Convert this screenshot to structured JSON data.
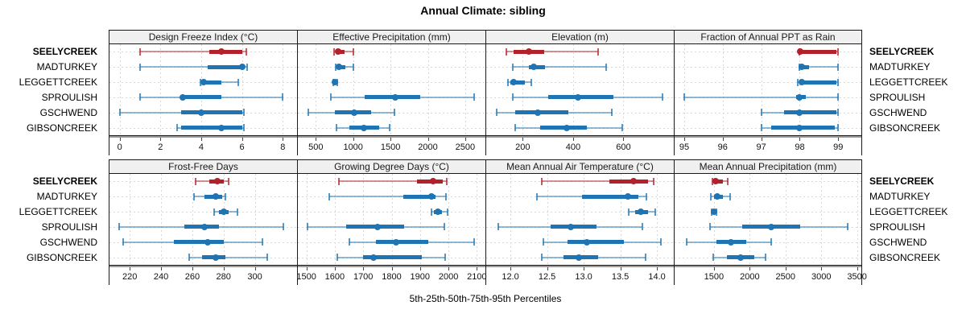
{
  "title": "Annual Climate: sibling",
  "footer_label": "5th-25th-50th-75th-95th Percentiles",
  "sites": [
    "SEELYCREEK",
    "MADTURKEY",
    "LEGGETTCREEK",
    "SPROULISH",
    "GSCHWEND",
    "GIBSONCREEK"
  ],
  "highlight_site": "SEELYCREEK",
  "colors": {
    "highlight": "#b3212a",
    "normal": "#1f74b3",
    "panel_header_bg": "#f0f0f0",
    "panel_border": "#1a1a1a",
    "gridline": "#d8d8d8",
    "axis_shadow": "#9a9a9a"
  },
  "chart_data": {
    "type": "dot-whisker-percentile-trellis",
    "percentiles": [
      "5th",
      "25th",
      "50th",
      "75th",
      "95th"
    ],
    "legend_note": "dot = 50th percentile, thick bar = 25th-75th, whisker with end caps = 5th-95th",
    "panels": [
      {
        "title": "Design Freeze Index (°C)",
        "row": 0,
        "domain": [
          -0.5,
          8.7
        ],
        "ticks": [
          0,
          2,
          4,
          6,
          8
        ],
        "tick_labels": [
          "0",
          "2",
          "4",
          "6",
          "8"
        ],
        "values": {
          "SEELYCREEK": [
            1.0,
            4.4,
            5.0,
            6.0,
            6.2
          ],
          "MADTURKEY": [
            1.0,
            4.3,
            6.0,
            6.1,
            6.25
          ],
          "LEGGETTCREEK": [
            3.95,
            4.0,
            4.1,
            5.0,
            5.8
          ],
          "SPROULISH": [
            1.0,
            3.0,
            3.1,
            5.0,
            8.0
          ],
          "GSCHWEND": [
            0.0,
            3.0,
            4.0,
            6.0,
            6.1
          ],
          "GIBSONCREEK": [
            2.8,
            3.0,
            5.0,
            6.0,
            6.1
          ]
        }
      },
      {
        "title": "Effective Precipitation (mm)",
        "row": 0,
        "domain": [
          260,
          2770
        ],
        "ticks": [
          500,
          1000,
          1500,
          2000,
          2500
        ],
        "tick_labels": [
          "500",
          "1000",
          "1500",
          "2000",
          "2500"
        ],
        "values": {
          "SEELYCREEK": [
            740,
            765,
            795,
            880,
            1005
          ],
          "MADTURKEY": [
            765,
            790,
            810,
            900,
            1005
          ],
          "LEGGETTCREEK": [
            730,
            745,
            757,
            775,
            790
          ],
          "SPROULISH": [
            700,
            1150,
            1560,
            1900,
            2615
          ],
          "GSCHWEND": [
            400,
            760,
            1010,
            1245,
            1550
          ],
          "GIBSONCREEK": [
            775,
            950,
            1140,
            1350,
            1490
          ]
        }
      },
      {
        "title": "Elevation (m)",
        "row": 0,
        "domain": [
          55,
          800
        ],
        "ticks": [
          200,
          400,
          600
        ],
        "tick_labels": [
          "200",
          "400",
          "600"
        ],
        "values": {
          "SEELYCREEK": [
            135,
            165,
            225,
            285,
            500
          ],
          "MADTURKEY": [
            160,
            225,
            245,
            290,
            530
          ],
          "LEGGETTCREEK": [
            140,
            150,
            165,
            210,
            235
          ],
          "SPROULISH": [
            160,
            300,
            420,
            560,
            755
          ],
          "GSCHWEND": [
            95,
            170,
            260,
            380,
            555
          ],
          "GIBSONCREEK": [
            170,
            270,
            375,
            455,
            595
          ]
        }
      },
      {
        "title": "Fraction of Annual PPT as Rain",
        "row": 0,
        "domain": [
          94.75,
          99.6
        ],
        "ticks": [
          95,
          96,
          97,
          98,
          99
        ],
        "tick_labels": [
          "95",
          "96",
          "97",
          "98",
          "99"
        ],
        "values": {
          "SEELYCREEK": [
            97.98,
            98.0,
            98.02,
            98.95,
            99.0
          ],
          "MADTURKEY": [
            97.98,
            98.0,
            98.05,
            98.25,
            99.0
          ],
          "LEGGETTCREEK": [
            97.95,
            98.0,
            98.05,
            98.95,
            99.0
          ],
          "SPROULISH": [
            95.0,
            97.9,
            98.0,
            98.15,
            99.0
          ],
          "GSCHWEND": [
            97.0,
            97.6,
            98.0,
            98.95,
            99.0
          ],
          "GIBSONCREEK": [
            97.0,
            97.25,
            98.0,
            98.9,
            99.0
          ]
        }
      },
      {
        "title": "Frost-Free Days",
        "row": 1,
        "domain": [
          207,
          327
        ],
        "ticks": [
          220,
          240,
          260,
          280,
          300
        ],
        "tick_labels": [
          "220",
          "240",
          "260",
          "280",
          "300"
        ],
        "values": {
          "SEELYCREEK": [
            262,
            271,
            276,
            280,
            283
          ],
          "MADTURKEY": [
            261,
            268,
            275,
            279,
            281
          ],
          "LEGGETTCREEK": [
            274,
            277,
            280,
            283,
            289
          ],
          "SPROULISH": [
            213,
            255,
            268,
            277,
            318
          ],
          "GSCHWEND": [
            216,
            248,
            270,
            280,
            305
          ],
          "GIBSONCREEK": [
            258,
            266,
            275,
            281,
            308
          ]
        }
      },
      {
        "title": "Growing Degree Days (°C)",
        "row": 1,
        "domain": [
          1470,
          2130
        ],
        "ticks": [
          1500,
          1600,
          1700,
          1800,
          1900,
          2000,
          2100
        ],
        "tick_labels": [
          "1500",
          "1600",
          "1700",
          "1800",
          "1900",
          "2000",
          "2100"
        ],
        "values": {
          "SEELYCREEK": [
            1615,
            1890,
            1945,
            1980,
            1995
          ],
          "MADTURKEY": [
            1580,
            1840,
            1940,
            1955,
            1990
          ],
          "LEGGETTCREEK": [
            1940,
            1950,
            1962,
            1978,
            1998
          ],
          "SPROULISH": [
            1505,
            1640,
            1750,
            1845,
            1985
          ],
          "GSCHWEND": [
            1650,
            1745,
            1815,
            1930,
            2090
          ],
          "GIBSONCREEK": [
            1608,
            1700,
            1735,
            1905,
            1988
          ]
        }
      },
      {
        "title": "Mean Annual Air Temperature (°C)",
        "row": 1,
        "domain": [
          11.67,
          14.23
        ],
        "ticks": [
          12.0,
          12.5,
          13.0,
          13.5,
          14.0
        ],
        "tick_labels": [
          "12.0",
          "12.5",
          "13.0",
          "13.5",
          "14.0"
        ],
        "values": {
          "SEELYCREEK": [
            12.43,
            13.35,
            13.68,
            13.88,
            13.96
          ],
          "MADTURKEY": [
            12.36,
            12.98,
            13.6,
            13.75,
            13.86
          ],
          "LEGGETTCREEK": [
            13.62,
            13.7,
            13.78,
            13.88,
            13.98
          ],
          "SPROULISH": [
            11.84,
            12.55,
            12.82,
            13.18,
            13.8
          ],
          "GSCHWEND": [
            12.45,
            12.78,
            13.04,
            13.55,
            14.05
          ],
          "GIBSONCREEK": [
            12.43,
            12.72,
            12.93,
            13.2,
            13.85
          ]
        }
      },
      {
        "title": "Mean Annual Precipitation (mm)",
        "row": 1,
        "domain": [
          950,
          3560
        ],
        "ticks": [
          1500,
          2000,
          2500,
          3000,
          3500
        ],
        "tick_labels": [
          "1500",
          "2000",
          "2500",
          "3000",
          "3500"
        ],
        "values": {
          "SEELYCREEK": [
            1480,
            1500,
            1525,
            1620,
            1690
          ],
          "MADTURKEY": [
            1460,
            1500,
            1545,
            1620,
            1725
          ],
          "LEGGETTCREEK": [
            1470,
            1485,
            1505,
            1525,
            1540
          ],
          "SPROULISH": [
            1440,
            1890,
            2300,
            2710,
            3370
          ],
          "GSCHWEND": [
            1115,
            1540,
            1740,
            1950,
            2300
          ],
          "GIBSONCREEK": [
            1490,
            1680,
            1875,
            2060,
            2220
          ]
        }
      }
    ]
  }
}
